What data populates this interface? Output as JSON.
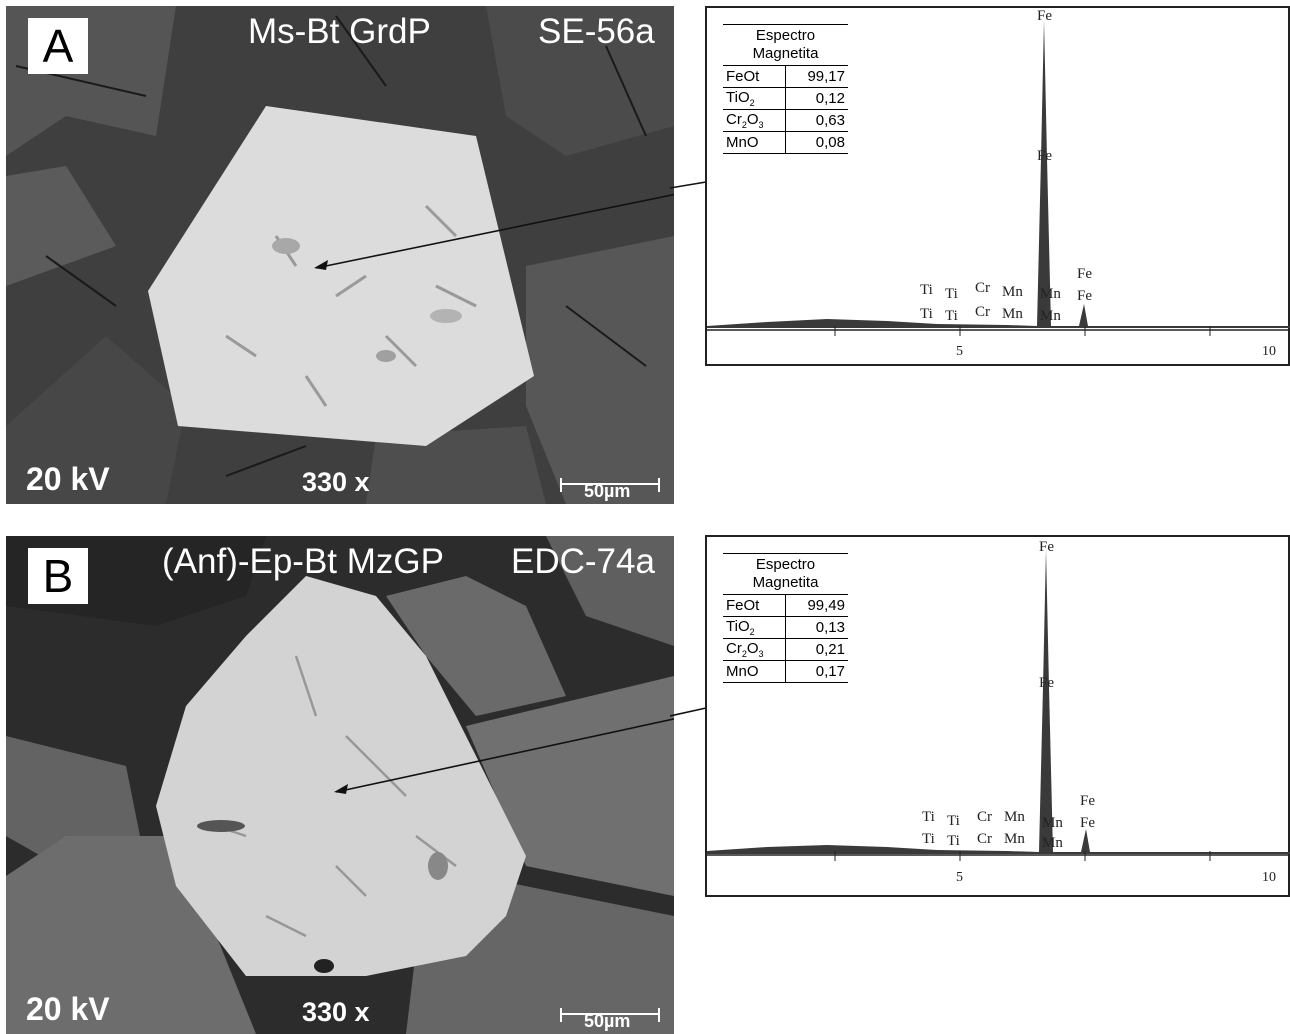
{
  "panels": [
    {
      "letter": "A",
      "rock": "Ms-Bt GrdP",
      "sample": "SE-56a",
      "voltage": "20 kV",
      "magnification": "330 x",
      "scale": "50µm",
      "table": {
        "title_line1": "Espectro",
        "title_line2": "Magnetita",
        "rows": [
          {
            "oxide": "FeOt",
            "value": "99,17"
          },
          {
            "oxide": "TiO2",
            "value": "0,12"
          },
          {
            "oxide": "Cr2O3",
            "value": "0,63"
          },
          {
            "oxide": "MnO",
            "value": "0,08"
          }
        ]
      },
      "peak_labels": {
        "fe_top": "Fe",
        "fe_mid": "Fe",
        "fe_kb": "Fe",
        "fe_kb2": "Fe",
        "ti": "Ti",
        "cr": "Cr",
        "mn": "Mn"
      },
      "x_ticks": [
        "5",
        "10"
      ]
    },
    {
      "letter": "B",
      "rock": "(Anf)-Ep-Bt MzGP",
      "sample": "EDC-74a",
      "voltage": "20 kV",
      "magnification": "330 x",
      "scale": "50µm",
      "table": {
        "title_line1": "Espectro",
        "title_line2": "Magnetita",
        "rows": [
          {
            "oxide": "FeOt",
            "value": "99,49"
          },
          {
            "oxide": "TiO2",
            "value": "0,13"
          },
          {
            "oxide": "Cr2O3",
            "value": "0,21"
          },
          {
            "oxide": "MnO",
            "value": "0,17"
          }
        ]
      },
      "peak_labels": {
        "fe_top": "Fe",
        "fe_mid": "Fe",
        "fe_kb": "Fe",
        "fe_kb2": "Fe",
        "ti": "Ti",
        "cr": "Cr",
        "mn": "Mn"
      },
      "x_ticks": [
        "5",
        "10"
      ]
    }
  ]
}
